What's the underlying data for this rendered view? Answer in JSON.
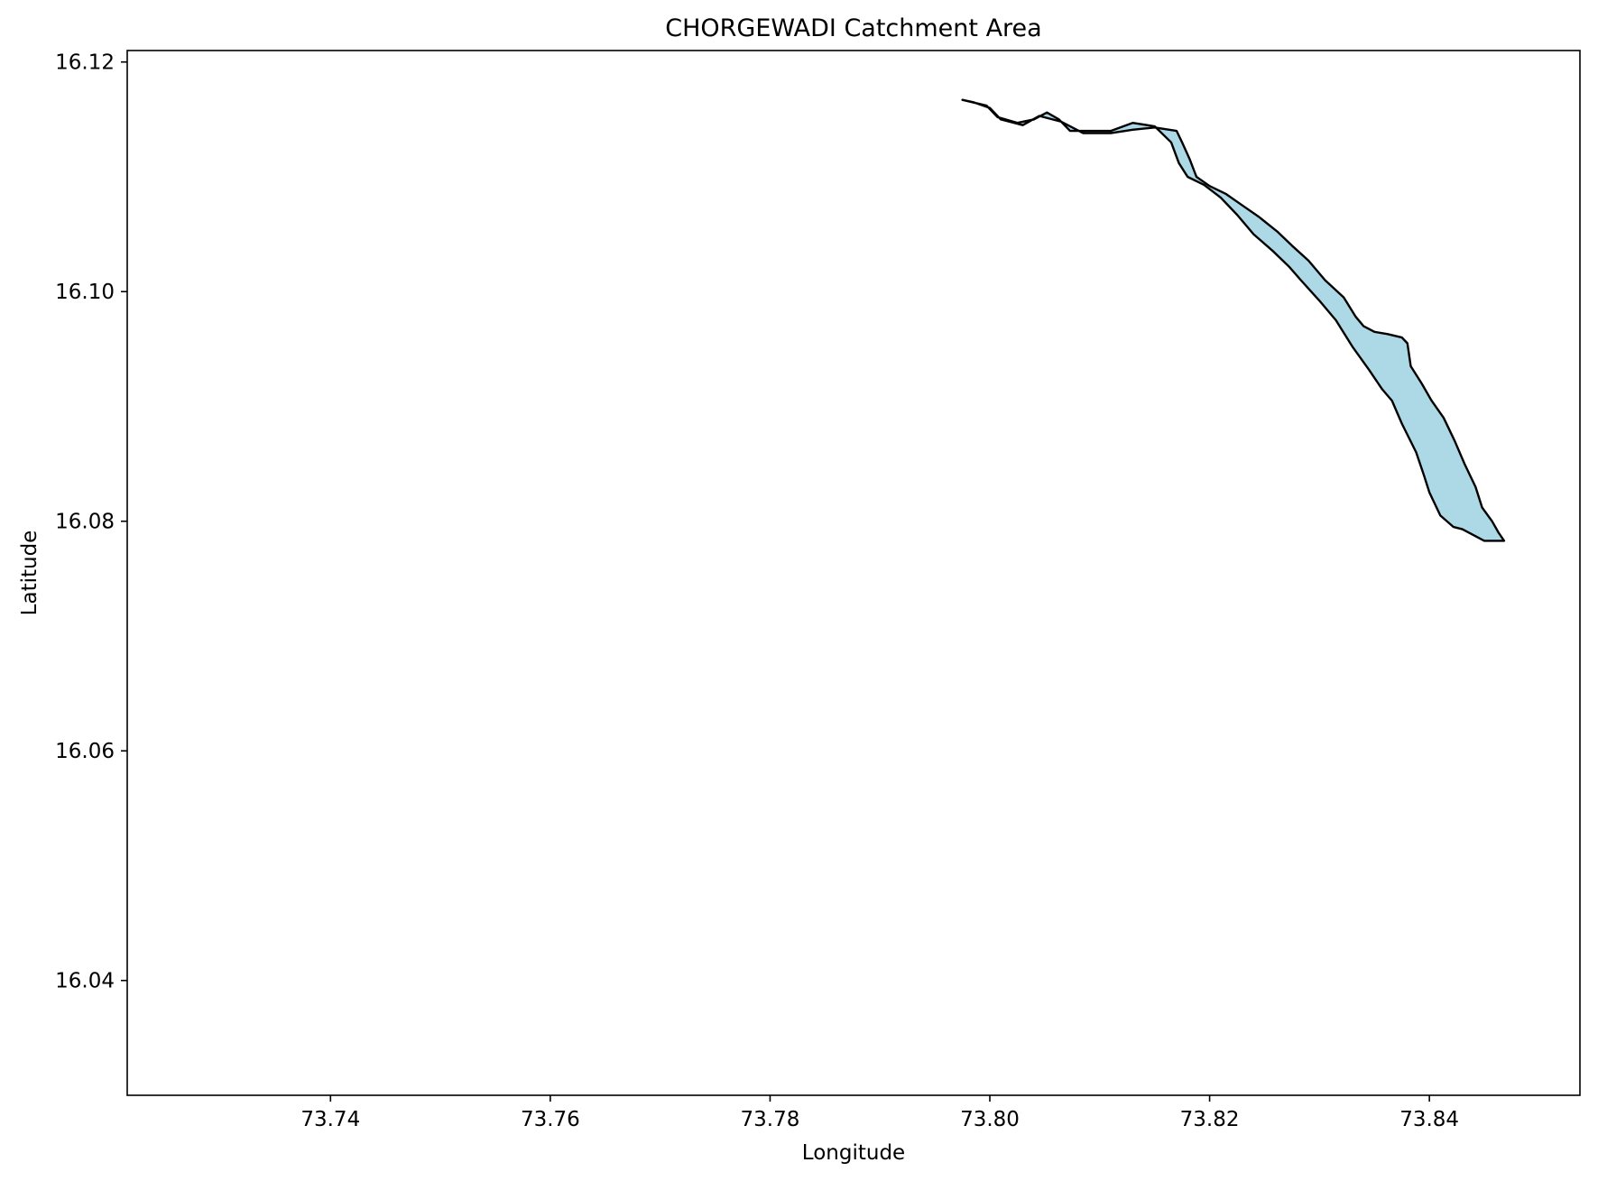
{
  "chart_data": {
    "type": "map",
    "title": "CHORGEWADI Catchment Area",
    "xlabel": "Longitude",
    "ylabel": "Latitude",
    "xlim": [
      73.7215,
      73.8537
    ],
    "ylim": [
      16.03,
      16.121
    ],
    "xticks": [
      73.74,
      73.76,
      73.78,
      73.8,
      73.82,
      73.84
    ],
    "yticks": [
      16.04,
      16.06,
      16.08,
      16.1,
      16.12
    ],
    "xtick_labels": [
      "73.74",
      "73.76",
      "73.78",
      "73.80",
      "73.82",
      "73.84"
    ],
    "ytick_labels": [
      "16.04",
      "16.06",
      "16.08",
      "16.10",
      "16.12"
    ],
    "grid": false,
    "fill_color": "#add8e6",
    "edge_color": "#000000",
    "boundary": {
      "name": "CHORGEWADI",
      "lonlat": [
        [
          73.7975,
          16.1167
        ],
        [
          73.7997,
          16.1162
        ],
        [
          73.8007,
          16.1152
        ],
        [
          73.8025,
          16.1147
        ],
        [
          73.804,
          16.115
        ],
        [
          73.8052,
          16.1156
        ],
        [
          73.8063,
          16.115
        ],
        [
          73.8073,
          16.114
        ],
        [
          73.811,
          16.114
        ],
        [
          73.813,
          16.1147
        ],
        [
          73.815,
          16.1144
        ],
        [
          73.8165,
          16.113
        ],
        [
          73.8172,
          16.1112
        ],
        [
          73.818,
          16.11
        ],
        [
          73.8195,
          16.1093
        ],
        [
          73.821,
          16.1082
        ],
        [
          73.8225,
          16.1067
        ],
        [
          73.824,
          16.105
        ],
        [
          73.8258,
          16.1035
        ],
        [
          73.8272,
          16.1022
        ],
        [
          73.8283,
          16.101
        ],
        [
          73.83,
          16.0992
        ],
        [
          73.8315,
          16.0975
        ],
        [
          73.833,
          16.0952
        ],
        [
          73.8345,
          16.0932
        ],
        [
          73.8357,
          16.0915
        ],
        [
          73.8366,
          16.0905
        ],
        [
          73.8375,
          16.0885
        ],
        [
          73.8388,
          16.086
        ],
        [
          73.8395,
          16.084
        ],
        [
          73.84,
          16.0825
        ],
        [
          73.841,
          16.0805
        ],
        [
          73.8422,
          16.0795
        ],
        [
          73.843,
          16.0793
        ],
        [
          73.845,
          16.0783
        ],
        [
          73.8468,
          16.0783
        ],
        [
          73.8463,
          16.079
        ],
        [
          73.8457,
          16.08
        ],
        [
          73.8448,
          16.0812
        ],
        [
          73.8442,
          16.083
        ],
        [
          73.8432,
          16.085
        ],
        [
          73.8423,
          16.087
        ],
        [
          73.8413,
          16.089
        ],
        [
          73.8402,
          16.0905
        ],
        [
          73.8393,
          16.092
        ],
        [
          73.8383,
          16.0935
        ],
        [
          73.838,
          16.0955
        ],
        [
          73.8375,
          16.096
        ],
        [
          73.8362,
          16.0963
        ],
        [
          73.835,
          16.0965
        ],
        [
          73.834,
          16.097
        ],
        [
          73.8333,
          16.0978
        ],
        [
          73.8322,
          16.0995
        ],
        [
          73.8305,
          16.101
        ],
        [
          73.829,
          16.1027
        ],
        [
          73.8275,
          16.104
        ],
        [
          73.8262,
          16.1052
        ],
        [
          73.8245,
          16.1065
        ],
        [
          73.823,
          16.1075
        ],
        [
          73.8215,
          16.1085
        ],
        [
          73.82,
          16.1092
        ],
        [
          73.8188,
          16.11
        ],
        [
          73.8182,
          16.1115
        ],
        [
          73.8175,
          16.113
        ],
        [
          73.817,
          16.114
        ],
        [
          73.815,
          16.1143
        ],
        [
          73.813,
          16.1141
        ],
        [
          73.811,
          16.1138
        ],
        [
          73.8085,
          16.1138
        ],
        [
          73.8065,
          16.1148
        ],
        [
          73.8045,
          16.1153
        ],
        [
          73.803,
          16.1145
        ],
        [
          73.801,
          16.115
        ],
        [
          73.8,
          16.116
        ],
        [
          73.7985,
          16.1165
        ]
      ]
    }
  }
}
